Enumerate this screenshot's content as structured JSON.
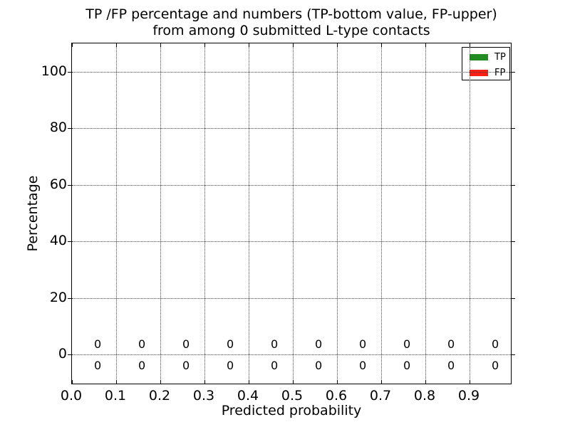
{
  "figure": {
    "title_lines": [
      "TP /FP percentage and numbers (TP-bottom value, FP-upper)",
      "from among 0 submitted L-type contacts"
    ],
    "xlabel": "Predicted probability",
    "ylabel": "Percentage"
  },
  "chart_data": {
    "type": "bar",
    "title": "TP /FP percentage and numbers (TP-bottom value, FP-upper) from among 0 submitted L-type contacts",
    "xlabel": "Predicted probability",
    "ylabel": "Percentage",
    "xlim": [
      0.0,
      1.0
    ],
    "ylim": [
      -11,
      110
    ],
    "xticks": [
      "0.0",
      "0.1",
      "0.2",
      "0.3",
      "0.4",
      "0.5",
      "0.6",
      "0.7",
      "0.8",
      "0.9"
    ],
    "yticks": [
      "0",
      "20",
      "40",
      "60",
      "80",
      "100"
    ],
    "grid": "dotted",
    "legend_position": "upper right",
    "categories": [
      0.0,
      0.1,
      0.2,
      0.3,
      0.4,
      0.5,
      0.6,
      0.7,
      0.8,
      0.9
    ],
    "series": [
      {
        "name": "TP",
        "color": "#228B22",
        "label_row": "bottom",
        "values": [
          0,
          0,
          0,
          0,
          0,
          0,
          0,
          0,
          0,
          0
        ]
      },
      {
        "name": "FP",
        "color": "#FB2016",
        "label_row": "upper",
        "values": [
          0,
          0,
          0,
          0,
          0,
          0,
          0,
          0,
          0,
          0
        ]
      }
    ]
  }
}
